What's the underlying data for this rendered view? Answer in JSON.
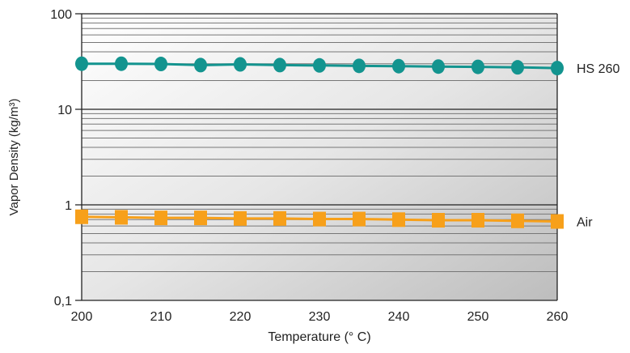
{
  "chart_data": {
    "type": "line",
    "title": "",
    "xlabel": "Temperature (° C)",
    "ylabel": "Vapor Density (kg/m³)",
    "x": [
      200,
      205,
      210,
      215,
      220,
      225,
      230,
      235,
      240,
      245,
      250,
      255,
      260
    ],
    "xlim": [
      200,
      260
    ],
    "ylim": [
      0.1,
      100
    ],
    "yscale": "log",
    "x_ticks": [
      "200",
      "210",
      "220",
      "230",
      "240",
      "250",
      "260"
    ],
    "y_ticks": [
      "0,1",
      "1",
      "10",
      "100"
    ],
    "grid": true,
    "legend": "direct labels at right",
    "series": [
      {
        "name": "HS 260",
        "marker": "circle",
        "color": "#13948f",
        "values": [
          30,
          30,
          29.8,
          29,
          29.5,
          29,
          28.8,
          28.5,
          28.3,
          28,
          27.8,
          27.5,
          27
        ]
      },
      {
        "name": "Air",
        "marker": "square",
        "color": "#f7a01a",
        "values": [
          0.75,
          0.74,
          0.73,
          0.73,
          0.72,
          0.72,
          0.71,
          0.71,
          0.7,
          0.69,
          0.69,
          0.68,
          0.67
        ]
      }
    ]
  }
}
